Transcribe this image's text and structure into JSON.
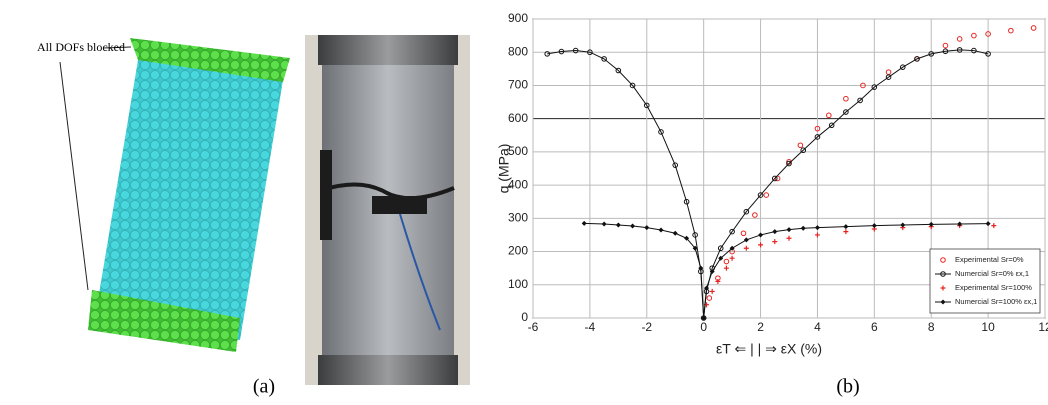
{
  "figure": {
    "annotation": "All DOFs blocked",
    "label_a": "(a)",
    "label_b": "(b)"
  },
  "chart_data": {
    "type": "line",
    "xlabel": "εT ⇐ | | ⇒ εX (%)",
    "ylabel": "q (MPa)",
    "xlim": [
      -6,
      12
    ],
    "xticks": [
      -6,
      -4,
      -2,
      0,
      2,
      4,
      6,
      8,
      10,
      12
    ],
    "ylim": [
      0,
      900
    ],
    "yticks": [
      0,
      100,
      200,
      300,
      400,
      500,
      600,
      700,
      800,
      900
    ],
    "grid": true,
    "legend": "lower right",
    "series": [
      {
        "name": "Experimental Sr=0%",
        "color": "#e8231f",
        "marker": "circle-open",
        "line": false,
        "x": [
          0.2,
          0.5,
          0.8,
          1.0,
          1.4,
          1.8,
          2.2,
          2.6,
          3.0,
          3.4,
          4.0,
          4.4,
          5.0,
          5.6,
          6.5,
          7.5,
          8.5,
          9.0,
          9.5,
          10.0,
          10.8,
          11.6
        ],
        "values": [
          60,
          120,
          170,
          200,
          255,
          310,
          370,
          420,
          470,
          520,
          570,
          610,
          660,
          700,
          740,
          780,
          820,
          840,
          850,
          855,
          865,
          873
        ]
      },
      {
        "name": "Numercial Sr=0% εx,1",
        "color": "#111111",
        "marker": "circle-open",
        "line": true,
        "x": [
          -5.5,
          -5,
          -4.5,
          -4,
          -3.5,
          -3,
          -2.5,
          -2,
          -1.5,
          -1,
          -0.6,
          -0.3,
          -0.1,
          0,
          0.1,
          0.3,
          0.6,
          1,
          1.5,
          2,
          2.5,
          3,
          3.5,
          4,
          4.5,
          5,
          5.5,
          6,
          6.5,
          7,
          7.5,
          8,
          8.5,
          9,
          9.5,
          10
        ],
        "values": [
          795,
          802,
          805,
          800,
          780,
          745,
          700,
          640,
          560,
          460,
          350,
          250,
          140,
          0,
          80,
          150,
          210,
          260,
          320,
          370,
          420,
          465,
          505,
          545,
          580,
          620,
          655,
          695,
          725,
          755,
          780,
          795,
          803,
          807,
          805,
          795
        ]
      },
      {
        "name": "Experimental Sr=100%",
        "color": "#e8231f",
        "marker": "plus",
        "line": false,
        "x": [
          0.1,
          0.3,
          0.5,
          0.8,
          1,
          1.5,
          2,
          2.5,
          3,
          4,
          5,
          6,
          7,
          8,
          9,
          10.2
        ],
        "values": [
          40,
          80,
          110,
          150,
          180,
          210,
          220,
          230,
          240,
          250,
          260,
          268,
          272,
          275,
          278,
          278
        ]
      },
      {
        "name": "Numercial Sr=100% εx,1",
        "color": "#111111",
        "marker": "diamond",
        "line": true,
        "x": [
          -4.2,
          -3.5,
          -3,
          -2.5,
          -2,
          -1.5,
          -1,
          -0.6,
          -0.3,
          -0.1,
          0,
          0.1,
          0.3,
          0.6,
          1,
          1.5,
          2,
          2.5,
          3,
          3.5,
          4,
          5,
          6,
          7,
          8,
          9,
          10
        ],
        "values": [
          285,
          283,
          280,
          277,
          272,
          265,
          255,
          240,
          210,
          150,
          0,
          90,
          140,
          180,
          210,
          235,
          250,
          260,
          266,
          270,
          272,
          275,
          278,
          280,
          282,
          283,
          284
        ]
      }
    ]
  }
}
